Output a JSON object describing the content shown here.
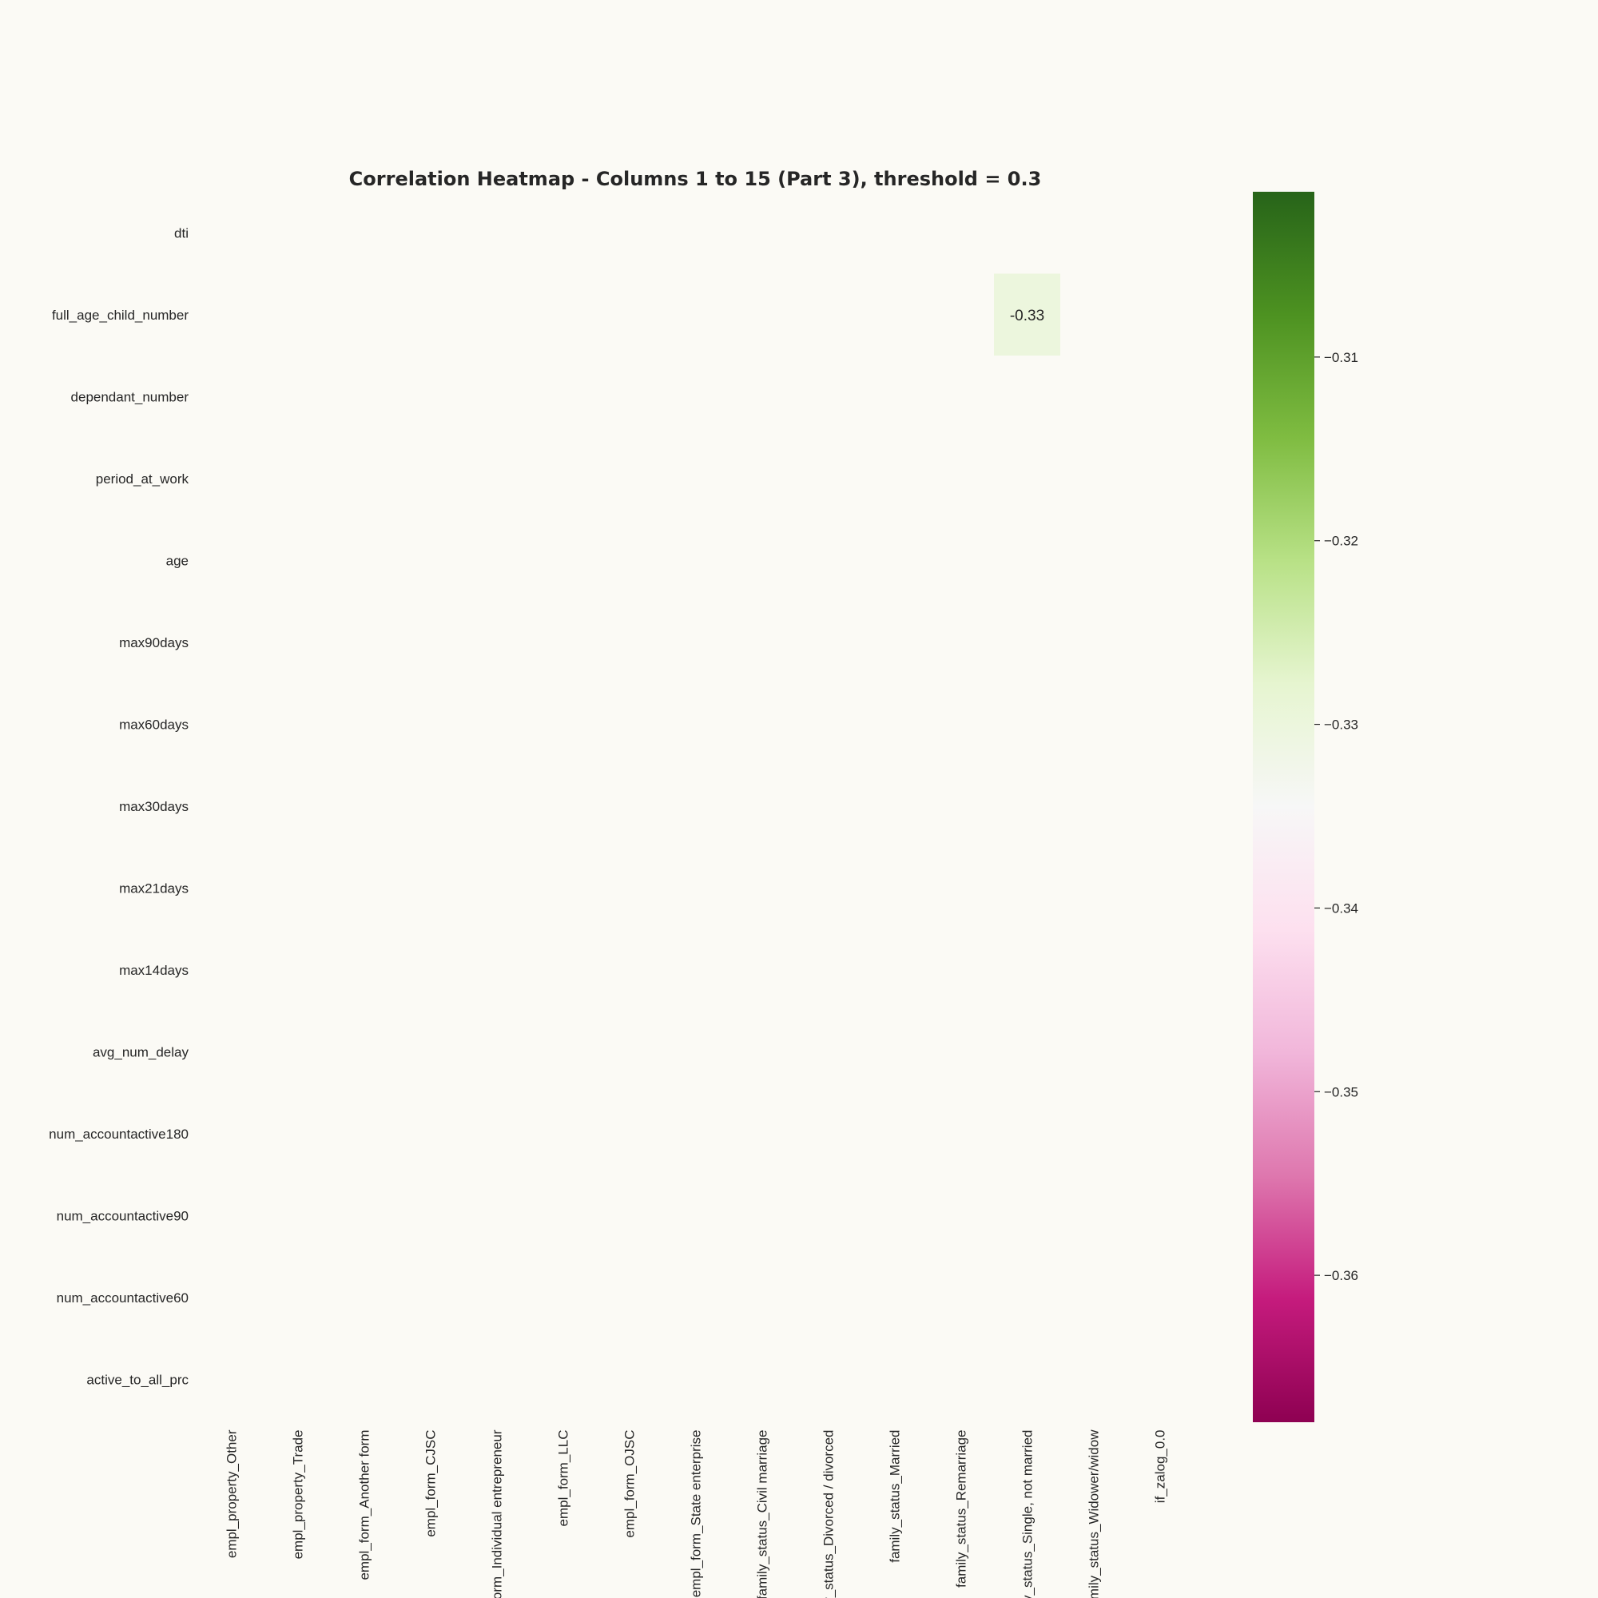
{
  "chart_data": {
    "type": "heatmap",
    "title": "Correlation Heatmap - Columns 1 to 15 (Part 3), threshold = 0.3",
    "xlabel": "",
    "ylabel": "",
    "rows": [
      "dti",
      "full_age_child_number",
      "dependant_number",
      "period_at_work",
      "age",
      "max90days",
      "max60days",
      "max30days",
      "max21days",
      "max14days",
      "avg_num_delay",
      "num_accountactive180",
      "num_accountactive90",
      "num_accountactive60",
      "active_to_all_prc"
    ],
    "columns": [
      "empl_property_Other",
      "empl_property_Trade",
      "empl_form_Another form",
      "empl_form_CJSC",
      "empl_form_Individual entrepreneur",
      "empl_form_LLC",
      "empl_form_OJSC",
      "empl_form_State enterprise",
      "family_status_Civil marriage",
      "family_status_Divorced / divorced",
      "family_status_Married",
      "family_status_Remarriage",
      "family_status_Single, not married",
      "family_status_Widower/widow",
      "if_zalog_0.0"
    ],
    "cells": [
      {
        "row": "full_age_child_number",
        "column": "family_status_Single, not married",
        "value": -0.33,
        "label": "-0.33"
      }
    ],
    "colorbar": {
      "ticks": [
        {
          "value": -0.31,
          "label": "−0.31"
        },
        {
          "value": -0.32,
          "label": "−0.32"
        },
        {
          "value": -0.33,
          "label": "−0.33"
        },
        {
          "value": -0.34,
          "label": "−0.34"
        },
        {
          "value": -0.35,
          "label": "−0.35"
        },
        {
          "value": -0.36,
          "label": "−0.36"
        }
      ],
      "range": [
        -0.368,
        -0.301
      ],
      "colormap": "PiYG",
      "stops": [
        "#8e0152",
        "#c51b7d",
        "#de77ae",
        "#f1b6da",
        "#fde0ef",
        "#f7f7f7",
        "#e6f5d0",
        "#b8e186",
        "#7fbc41",
        "#4d9221",
        "#276419"
      ]
    },
    "grid": false,
    "legend": "colorbar-right"
  }
}
